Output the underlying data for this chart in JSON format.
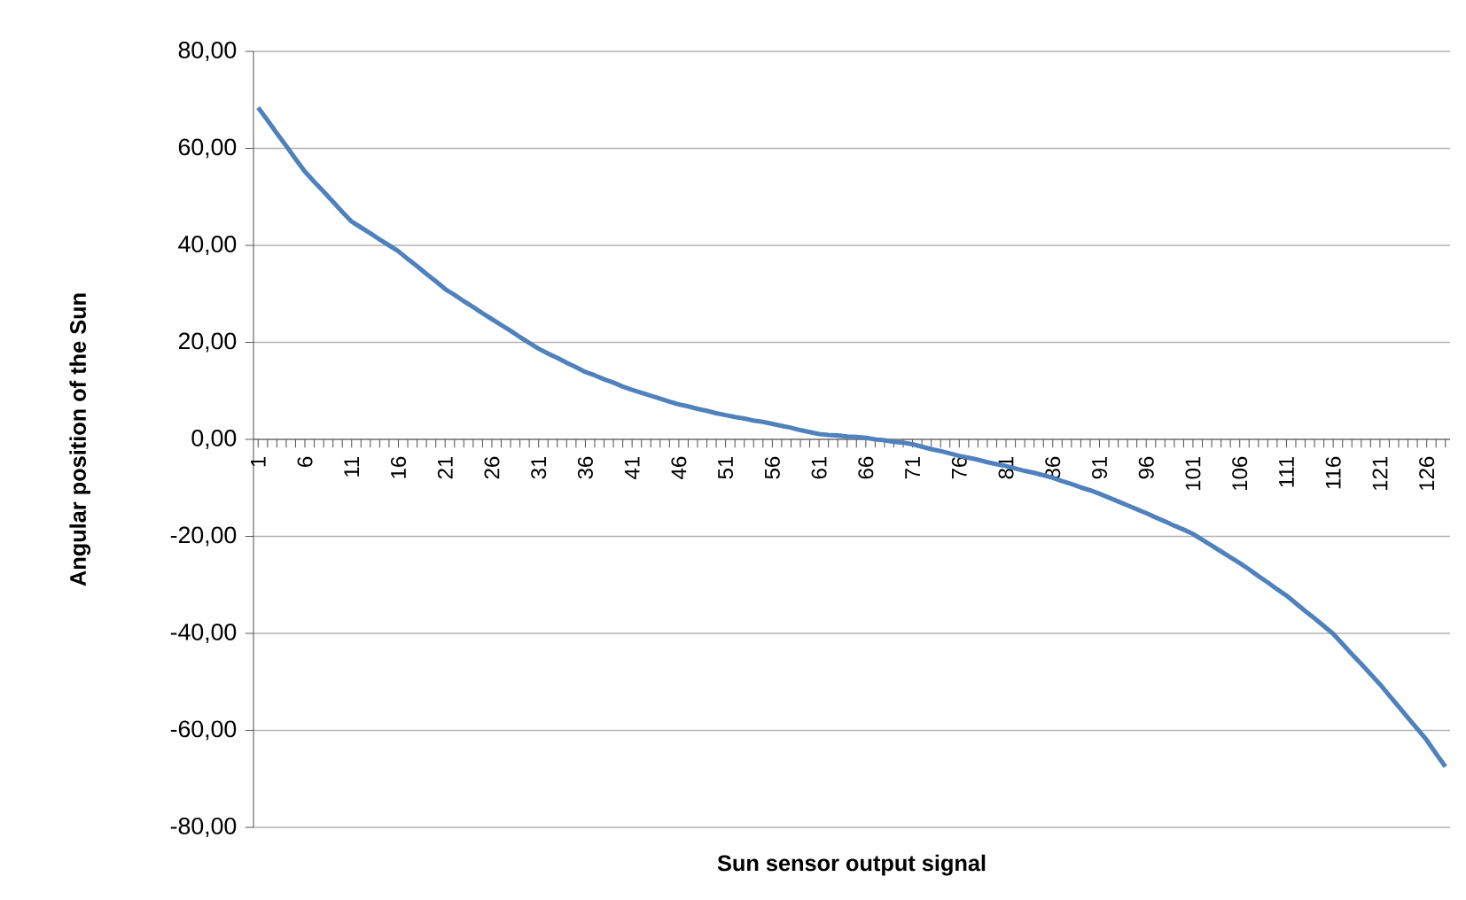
{
  "chart_data": {
    "type": "line",
    "xlabel": "Sun sensor output signal",
    "ylabel": "Angular position of the Sun",
    "categories": [
      "1",
      null,
      null,
      null,
      null,
      "6",
      null,
      null,
      null,
      null,
      "11",
      null,
      null,
      null,
      null,
      "16",
      null,
      null,
      null,
      null,
      "21",
      null,
      null,
      null,
      null,
      "26",
      null,
      null,
      null,
      null,
      "31",
      null,
      null,
      null,
      null,
      "36",
      null,
      null,
      null,
      null,
      "41",
      null,
      null,
      null,
      null,
      "46",
      null,
      null,
      null,
      null,
      "51",
      null,
      null,
      null,
      null,
      "56",
      null,
      null,
      null,
      null,
      "61",
      null,
      null,
      null,
      null,
      "66",
      null,
      null,
      null,
      null,
      "71",
      null,
      null,
      null,
      null,
      "76",
      null,
      null,
      null,
      null,
      "81",
      null,
      null,
      null,
      null,
      "86",
      null,
      null,
      null,
      null,
      "91",
      null,
      null,
      null,
      null,
      "96",
      null,
      null,
      null,
      null,
      "101",
      null,
      null,
      null,
      null,
      "106",
      null,
      null,
      null,
      null,
      "111",
      null,
      null,
      null,
      null,
      "116",
      null,
      null,
      null,
      null,
      "121",
      null,
      null,
      null,
      null,
      "126",
      null,
      null
    ],
    "series": [
      {
        "color": "#4f81bd",
        "values": [
          68.4,
          65.8,
          63.1,
          60.5,
          57.8,
          55.2,
          53.1,
          51.1,
          49.0,
          46.9,
          44.9,
          43.7,
          42.5,
          41.2,
          40.0,
          38.8,
          37.2,
          35.7,
          34.1,
          32.6,
          31.0,
          29.8,
          28.5,
          27.3,
          26.0,
          24.8,
          23.6,
          22.4,
          21.1,
          19.9,
          18.7,
          17.7,
          16.8,
          15.8,
          14.9,
          13.9,
          13.2,
          12.4,
          11.7,
          10.9,
          10.2,
          9.6,
          9.0,
          8.4,
          7.8,
          7.2,
          6.8,
          6.3,
          5.9,
          5.4,
          5.0,
          4.6,
          4.3,
          3.9,
          3.6,
          3.2,
          2.8,
          2.4,
          1.9,
          1.5,
          1.1,
          0.9,
          0.8,
          0.6,
          0.5,
          0.3,
          0.0,
          -0.2,
          -0.5,
          -0.7,
          -1.0,
          -1.5,
          -2.0,
          -2.4,
          -2.9,
          -3.4,
          -3.8,
          -4.2,
          -4.7,
          -5.1,
          -5.5,
          -6.0,
          -6.5,
          -6.9,
          -7.4,
          -7.9,
          -8.6,
          -9.2,
          -9.9,
          -10.5,
          -11.2,
          -12.0,
          -12.8,
          -13.6,
          -14.4,
          -15.2,
          -16.1,
          -16.9,
          -17.8,
          -18.6,
          -19.5,
          -20.7,
          -21.9,
          -23.1,
          -24.3,
          -25.5,
          -26.8,
          -28.2,
          -29.5,
          -30.9,
          -32.2,
          -33.8,
          -35.4,
          -36.9,
          -38.5,
          -40.1,
          -42.2,
          -44.3,
          -46.3,
          -48.4,
          -50.5,
          -52.8,
          -55.1,
          -57.4,
          -59.7,
          -62.0,
          -64.8,
          -67.5
        ]
      }
    ],
    "ylim": [
      -80,
      80
    ],
    "yticks": [
      {
        "value": -80,
        "label": "-80,00"
      },
      {
        "value": -60,
        "label": "-60,00"
      },
      {
        "value": -40,
        "label": "-40,00"
      },
      {
        "value": -20,
        "label": "-20,00"
      },
      {
        "value": 0,
        "label": "0,00"
      },
      {
        "value": 20,
        "label": "20,00"
      },
      {
        "value": 40,
        "label": "40,00"
      },
      {
        "value": 60,
        "label": "60,00"
      },
      {
        "value": 80,
        "label": "80,00"
      }
    ],
    "grid": "y"
  }
}
